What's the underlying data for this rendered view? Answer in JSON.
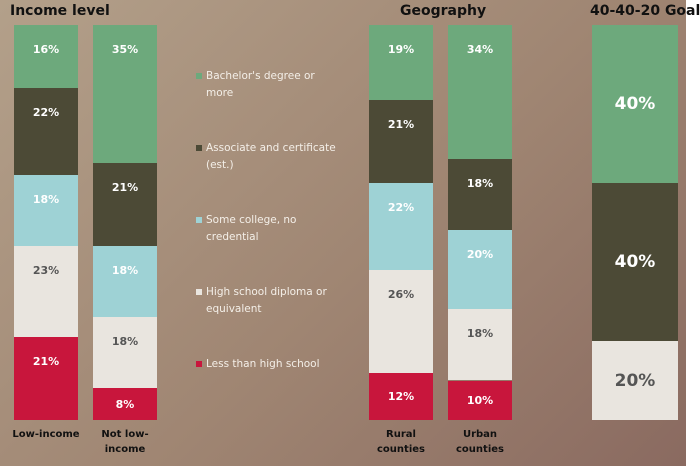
{
  "chart_data": {
    "type": "bar",
    "stacked": true,
    "groups": [
      {
        "title": "Income level",
        "categories": [
          "Low-income",
          "Not low-income"
        ]
      },
      {
        "title": "Geography",
        "categories": [
          "Rural counties",
          "Urban counties"
        ]
      },
      {
        "title": "40-40-20 Goal",
        "categories": [
          null
        ]
      }
    ],
    "ylim": [
      0,
      100
    ],
    "series": [
      {
        "name": "Bachelor's degree or more",
        "color": "#6da97c",
        "values": [
          16,
          35,
          19,
          34,
          40
        ],
        "value_labels": [
          "16%",
          "35%",
          "19%",
          "34%",
          "40%"
        ]
      },
      {
        "name": "Associate and certificate (est.)",
        "color": "#4c4a36",
        "values": [
          22,
          21,
          21,
          18,
          40
        ],
        "value_labels": [
          "22%",
          "21%",
          "21%",
          "18%",
          "40%"
        ]
      },
      {
        "name": "Some college, no credential",
        "color": "#9ed2d5",
        "values": [
          18,
          18,
          22,
          20,
          null
        ],
        "value_labels": [
          "18%",
          "18%",
          "22%",
          "20%",
          null
        ]
      },
      {
        "name": "High school diploma or equivalent",
        "color": "#e9e5df",
        "values": [
          23,
          18,
          26,
          18,
          20
        ],
        "value_labels": [
          "23%",
          "18%",
          "26%",
          "18%",
          "20%"
        ]
      },
      {
        "name": "Less than high school",
        "color": "#c8163c",
        "values": [
          21,
          8,
          12,
          10,
          null
        ],
        "value_labels": [
          "21%",
          "8%",
          "12%",
          "10%",
          null
        ]
      }
    ]
  }
}
